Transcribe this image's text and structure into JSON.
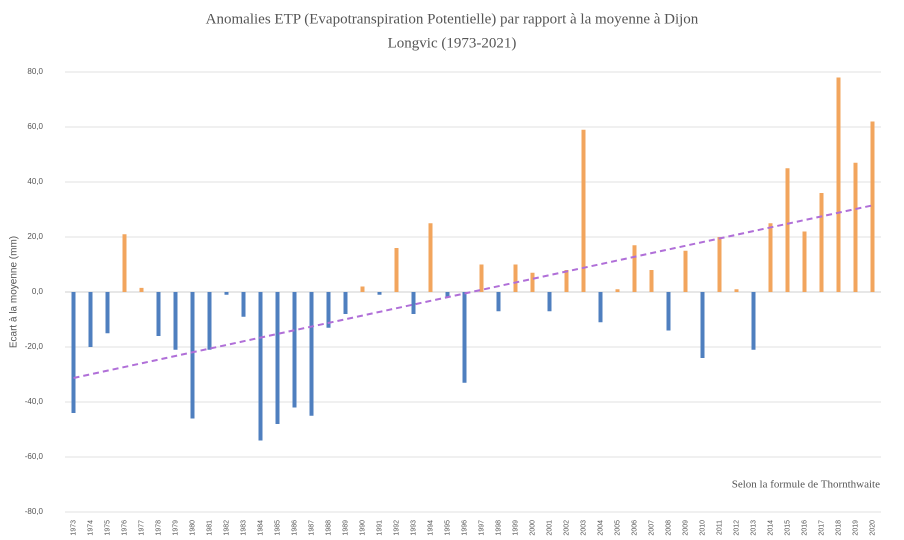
{
  "chart_data": {
    "type": "bar",
    "title": [
      "Anomalies ETP (Evapotranspiration Potentielle) par rapport à la moyenne à Dijon",
      "Longvic (1973-2021)"
    ],
    "y_label": "Ecart à la moyenne (mm)",
    "annotation": "Selon la formule de Thornthwaite",
    "categories": [
      "1973",
      "1974",
      "1975",
      "1976",
      "1977",
      "1978",
      "1979",
      "1980",
      "1981",
      "1982",
      "1983",
      "1984",
      "1985",
      "1986",
      "1987",
      "1988",
      "1989",
      "1990",
      "1991",
      "1992",
      "1993",
      "1994",
      "1995",
      "1996",
      "1997",
      "1998",
      "1999",
      "2000",
      "2001",
      "2002",
      "2003",
      "2004",
      "2005",
      "2006",
      "2007",
      "2008",
      "2009",
      "2010",
      "2011",
      "2012",
      "2013",
      "2014",
      "2015",
      "2016",
      "2017",
      "2018",
      "2019",
      "2020"
    ],
    "values": [
      -44,
      -20,
      -15,
      21,
      1.5,
      -16,
      -21,
      -46,
      -21,
      -1,
      -9,
      -54,
      -48,
      -42,
      -45,
      -13,
      -8,
      2,
      -1,
      16,
      -8,
      25,
      -2,
      -33,
      10,
      -7,
      10,
      7,
      -7,
      8,
      59,
      -11,
      1,
      17,
      8,
      -14,
      15,
      -24,
      20,
      1,
      -21,
      25,
      45,
      22,
      36,
      78,
      47,
      62
    ],
    "color_negative": "#4f7fbf",
    "color_positive": "#f2a55d",
    "trendline": true,
    "trendline_color": "#b06fd8",
    "ylim": [
      -80,
      80
    ],
    "yticks": [
      {
        "value": -80,
        "label": "-80,0"
      },
      {
        "value": -60,
        "label": "-60,0"
      },
      {
        "value": -40,
        "label": "-40,0"
      },
      {
        "value": -20,
        "label": "-20,0"
      },
      {
        "value": 0,
        "label": "0,0"
      },
      {
        "value": 20,
        "label": "20,0"
      },
      {
        "value": 40,
        "label": "40,0"
      },
      {
        "value": 60,
        "label": "60,0"
      },
      {
        "value": 80,
        "label": "80,0"
      }
    ],
    "grid": true
  }
}
